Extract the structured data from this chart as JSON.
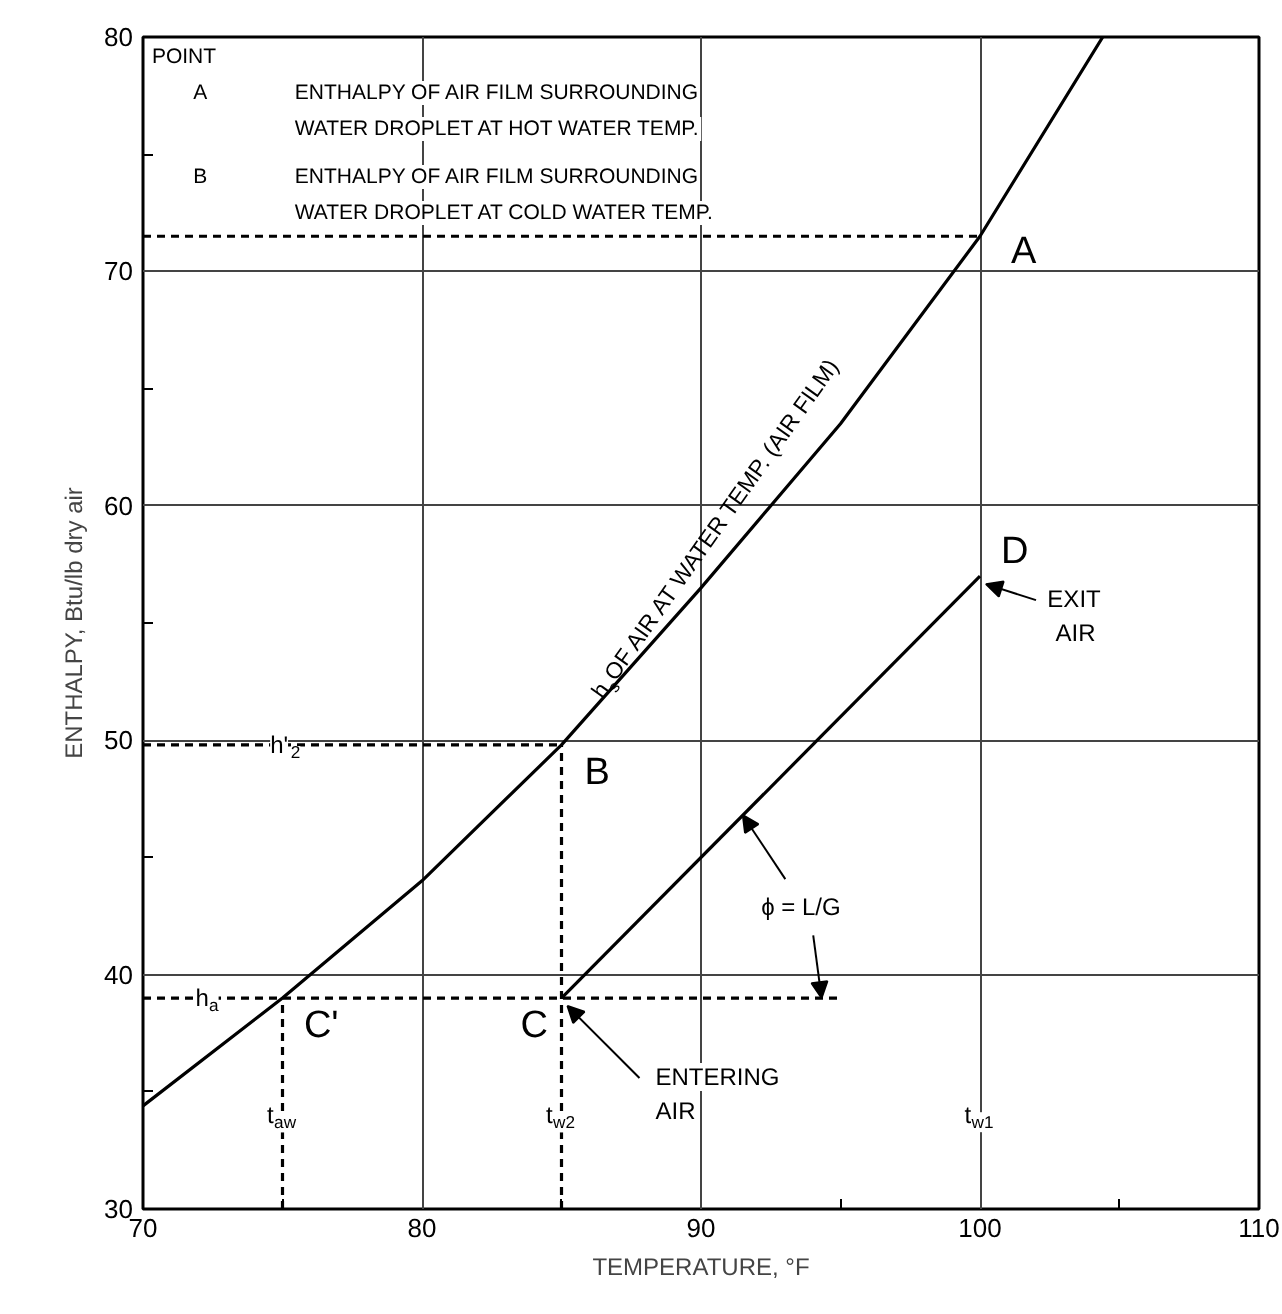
{
  "chart_data": {
    "type": "line",
    "xlabel": "TEMPERATURE, °F",
    "ylabel": "ENTHALPY, Btu/lb dry air",
    "xlim": [
      70,
      110
    ],
    "ylim": [
      30,
      80
    ],
    "xticks": [
      70,
      80,
      90,
      100,
      110
    ],
    "yticks": [
      30,
      40,
      50,
      60,
      70,
      80
    ],
    "grid": true,
    "marker": "none",
    "series": [
      {
        "color": "#000000",
        "line_style": "solid",
        "x": [
          70,
          75,
          80,
          85,
          90,
          95,
          100,
          104.4
        ],
        "values": [
          34.4,
          39,
          44,
          49.8,
          56.5,
          63.5,
          71.5,
          80
        ]
      },
      {
        "color": "#000000",
        "line_style": "solid",
        "x": [
          85,
          100
        ],
        "values": [
          39,
          57
        ]
      },
      {
        "color": "#000000",
        "line_style": "dashed",
        "x": [
          70,
          100
        ],
        "values": [
          71.5,
          71.5
        ]
      },
      {
        "color": "#000000",
        "line_style": "dashed",
        "x": [
          70,
          85
        ],
        "values": [
          49.8,
          49.8
        ]
      },
      {
        "color": "#000000",
        "line_style": "dashed",
        "x": [
          70,
          94.9
        ],
        "values": [
          39,
          39
        ]
      },
      {
        "color": "#000000",
        "line_style": "dashed",
        "x": [
          75,
          75
        ],
        "values": [
          30,
          39
        ]
      },
      {
        "color": "#000000",
        "line_style": "dashed",
        "x": [
          85,
          85
        ],
        "values": [
          30,
          49.8
        ]
      }
    ],
    "annotations": [
      "POINT",
      "A",
      "ENTHALPY OF AIR FILM SURROUNDING\nWATER DROPLET AT HOT WATER TEMP.",
      "B",
      "ENTHALPY OF AIR FILM SURROUNDING\nWATER DROPLET AT COLD WATER TEMP.",
      "h$_{s}$ OF AIR AT WATER TEMP. (AIR FILM)",
      "t$_{w1}$",
      {
        "text": "A",
        "x": 100,
        "y": 71.5
      },
      {
        "text": "D",
        "x": 100,
        "y": 57
      },
      {
        "text": "B",
        "x": 85,
        "y": 49.8
      },
      {
        "text": "C",
        "x": 85,
        "y": 39
      },
      {
        "text": "C'",
        "x": 75,
        "y": 39
      },
      {
        "text": "h'$_{2}$",
        "x": 75.1,
        "y": 49.8
      },
      {
        "text": "h$_{a}$",
        "x": 72.3,
        "y": 39
      },
      {
        "text": "t$_{aw}$",
        "x": 75,
        "y": 34.0
      },
      {
        "text": "t$_{w2}$",
        "x": 85,
        "y": 34.0
      },
      {
        "text": "EXIT\nAIR",
        "x": 100,
        "y": 57
      },
      {
        "text": "ENTERING\nAIR",
        "x": 85,
        "y": 39
      },
      {
        "text": "ϕ = L/G",
        "x": 91.5,
        "y": 46.8
      }
    ]
  }
}
